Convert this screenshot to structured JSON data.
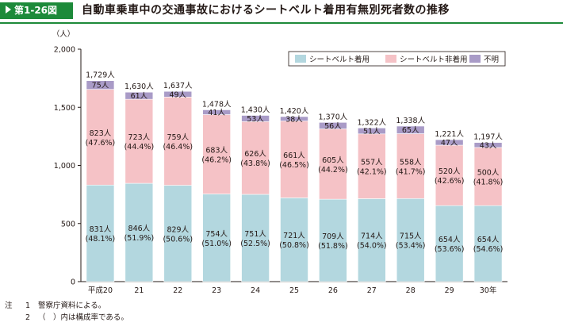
{
  "header": {
    "figure_number": "第1-26図",
    "title": "自動車乗車中の交通事故におけるシートベルト着用有無別死者数の推移"
  },
  "chart_data": {
    "type": "bar",
    "stacked": true,
    "unit_label": "（人）",
    "categories": [
      "平成20",
      "21",
      "22",
      "23",
      "24",
      "25",
      "26",
      "27",
      "28",
      "29",
      "30年"
    ],
    "ylim": [
      0,
      2000
    ],
    "yticks": [
      0,
      500,
      1000,
      1500,
      2000
    ],
    "ytick_labels": [
      "0",
      "500",
      "1,000",
      "1,500",
      "2,000"
    ],
    "grid": false,
    "legend_position": "top-right",
    "series": [
      {
        "name": "シートベルト着用",
        "color": "#b3d7df",
        "values": [
          831,
          846,
          829,
          754,
          751,
          721,
          709,
          714,
          715,
          654,
          654
        ],
        "labels": [
          "831人",
          "846人",
          "829人",
          "754人",
          "751人",
          "721人",
          "709人",
          "714人",
          "715人",
          "654人",
          "654人"
        ],
        "shares": [
          "(48.1%)",
          "(51.9%)",
          "(50.6%)",
          "(51.0%)",
          "(52.5%)",
          "(50.8%)",
          "(51.8%)",
          "(54.0%)",
          "(53.4%)",
          "(53.6%)",
          "(54.6%)"
        ]
      },
      {
        "name": "シートベルト非着用",
        "color": "#f5c2c6",
        "values": [
          823,
          723,
          759,
          683,
          626,
          661,
          605,
          557,
          558,
          520,
          500
        ],
        "labels": [
          "823人",
          "723人",
          "759人",
          "683人",
          "626人",
          "661人",
          "605人",
          "557人",
          "558人",
          "520人",
          "500人"
        ],
        "shares": [
          "(47.6%)",
          "(44.4%)",
          "(46.4%)",
          "(46.2%)",
          "(43.8%)",
          "(46.5%)",
          "(44.2%)",
          "(42.1%)",
          "(41.7%)",
          "(42.6%)",
          "(41.8%)"
        ]
      },
      {
        "name": "不明",
        "color": "#a99bc7",
        "values": [
          75,
          61,
          49,
          41,
          53,
          38,
          56,
          51,
          65,
          47,
          43
        ],
        "labels": [
          "75人",
          "61人",
          "49人",
          "41人",
          "53人",
          "38人",
          "56人",
          "51人",
          "65人",
          "47人",
          "43人"
        ]
      }
    ],
    "totals": [
      1729,
      1630,
      1637,
      1478,
      1430,
      1420,
      1370,
      1322,
      1338,
      1221,
      1197
    ],
    "total_labels": [
      "1,729人",
      "1,630人",
      "1,637人",
      "1,478人",
      "1,430人",
      "1,420人",
      "1,370人",
      "1,322人",
      "1,338人",
      "1,221人",
      "1,197人"
    ]
  },
  "notes": {
    "mark": "注",
    "items": [
      {
        "num": "1",
        "text": "警察庁資料による。"
      },
      {
        "num": "2",
        "text": "（　）内は構成率である。"
      }
    ]
  }
}
